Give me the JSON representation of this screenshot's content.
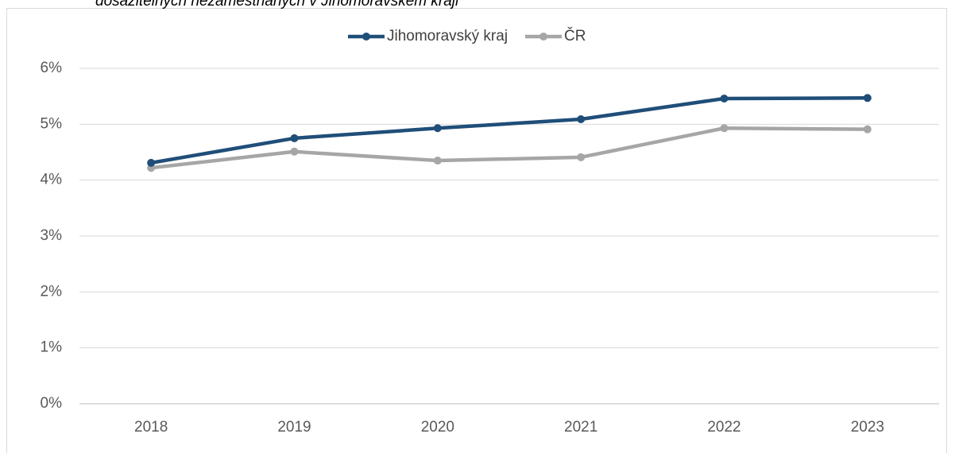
{
  "chart_data": {
    "type": "line",
    "title": "dosažitelných nezaměstnaných v Jihomoravském kraji",
    "categories": [
      "2018",
      "2019",
      "2020",
      "2021",
      "2022",
      "2023"
    ],
    "series": [
      {
        "name": "Jihomoravský kraj",
        "color": "#1f4e79",
        "values": [
          4.31,
          4.75,
          4.93,
          5.09,
          5.46,
          5.47
        ]
      },
      {
        "name": "ČR",
        "color": "#a6a6a6",
        "values": [
          4.22,
          4.51,
          4.35,
          4.41,
          4.93,
          4.91
        ]
      }
    ],
    "ylim": [
      0,
      6
    ],
    "yticks": [
      {
        "value": 0,
        "label": "0%"
      },
      {
        "value": 1,
        "label": "1%"
      },
      {
        "value": 2,
        "label": "2%"
      },
      {
        "value": 3,
        "label": "3%"
      },
      {
        "value": 4,
        "label": "4%"
      },
      {
        "value": 5,
        "label": "5%"
      },
      {
        "value": 6,
        "label": "6%"
      }
    ],
    "grid": true,
    "legend": "top"
  }
}
